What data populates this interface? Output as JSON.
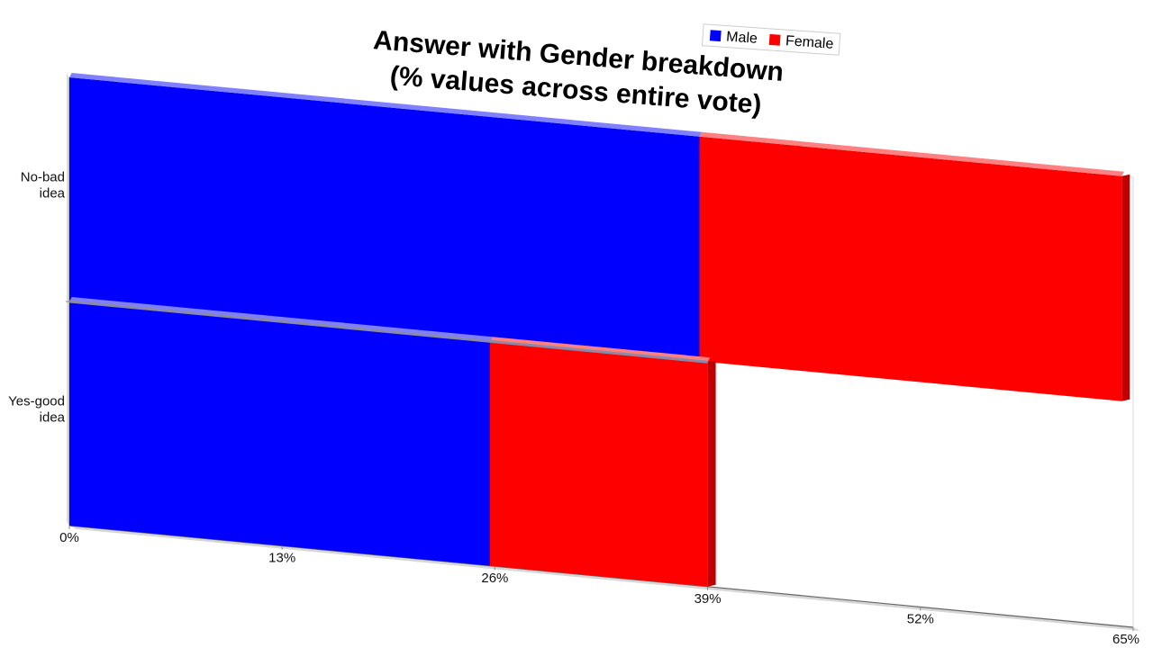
{
  "chart_data": {
    "type": "bar",
    "orientation": "horizontal",
    "stacked": true,
    "three_d": true,
    "title": "Answer with Gender breakdown\n(% values across entire vote)",
    "categories": [
      "No-bad idea",
      "Yes-good idea"
    ],
    "category_label_lines": [
      [
        "No-bad",
        "idea"
      ],
      [
        "Yes-good",
        "idea"
      ]
    ],
    "series": [
      {
        "name": "Male",
        "color": "#0000ff",
        "values": [
          38.5,
          25.7
        ]
      },
      {
        "name": "Female",
        "color": "#ff0000",
        "values": [
          25.8,
          13.3
        ]
      }
    ],
    "x_ticks": [
      "0%",
      "13%",
      "26%",
      "39%",
      "52%",
      "65%"
    ],
    "xlim": [
      0,
      65
    ],
    "xlabel": "",
    "ylabel": "",
    "legend": {
      "position": "top-right",
      "entries": [
        "Male",
        "Female"
      ]
    },
    "grid": false
  }
}
